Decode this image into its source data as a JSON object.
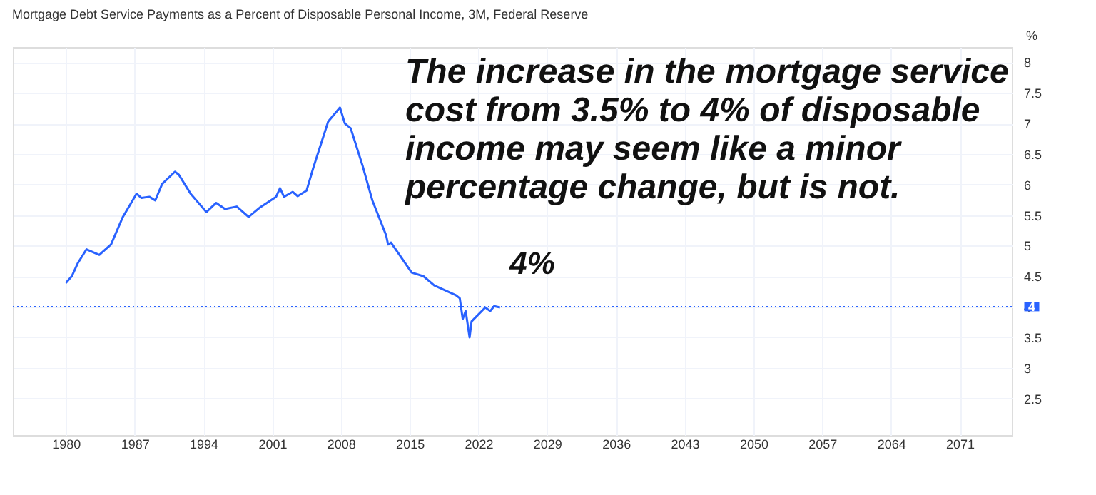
{
  "chart_data": {
    "type": "line",
    "title": "Mortgage Debt Service Payments as a Percent of Disposable Personal Income, 3M, Federal Reserve",
    "ylabel": "%",
    "x": [
      1980.0,
      1980.6,
      1981.2,
      1982.1,
      1983.4,
      1984.6,
      1985.8,
      1987.2,
      1987.7,
      1988.5,
      1989.1,
      1989.8,
      1991.1,
      1991.5,
      1992.7,
      1994.3,
      1995.3,
      1996.2,
      1997.4,
      1998.6,
      1999.8,
      2001.4,
      2001.8,
      2002.2,
      2003.1,
      2003.6,
      2004.5,
      2005.2,
      2006.7,
      2007.9,
      2008.4,
      2009.0,
      2010.2,
      2011.2,
      2012.6,
      2012.8,
      2013.1,
      2015.2,
      2016.4,
      2017.5,
      2019.7,
      2020.1,
      2020.4,
      2020.7,
      2021.1,
      2021.3,
      2022.7,
      2023.2,
      2023.6,
      2024.2
    ],
    "series": [
      {
        "color": "#2962ff",
        "values": [
          4.39,
          4.5,
          4.71,
          4.94,
          4.85,
          5.02,
          5.47,
          5.85,
          5.78,
          5.8,
          5.74,
          6.01,
          6.21,
          6.16,
          5.85,
          5.55,
          5.7,
          5.6,
          5.64,
          5.47,
          5.63,
          5.8,
          5.94,
          5.8,
          5.88,
          5.81,
          5.9,
          6.28,
          7.03,
          7.26,
          7.0,
          6.92,
          6.31,
          5.74,
          5.17,
          5.02,
          5.05,
          4.56,
          4.5,
          4.35,
          4.19,
          4.14,
          3.8,
          3.93,
          3.5,
          3.76,
          3.99,
          3.93,
          4.01,
          3.99
        ]
      }
    ],
    "xlim": [
      1974.6,
      2076.3
    ],
    "xticks": [
      1980,
      1987,
      1994,
      2001,
      2008,
      2015,
      2022,
      2029,
      2036,
      2043,
      2050,
      2057,
      2064,
      2071
    ],
    "ylim": [
      1.9,
      8.25
    ],
    "yticks": [
      2.5,
      3,
      3.5,
      4,
      4.5,
      5,
      5.5,
      6,
      6.5,
      7,
      7.5,
      8
    ],
    "grid": true,
    "marker": "none",
    "line_style": "solid",
    "ref_lines": [
      {
        "axis": "y",
        "value": 4,
        "label": "4",
        "color": "#2962ff",
        "line_style": "dotted"
      }
    ],
    "annotations": [
      "4%",
      "The increase in the mortgage service cost from 3.5% to 4% of disposable income may seem like a minor percentage change, but is not."
    ]
  }
}
